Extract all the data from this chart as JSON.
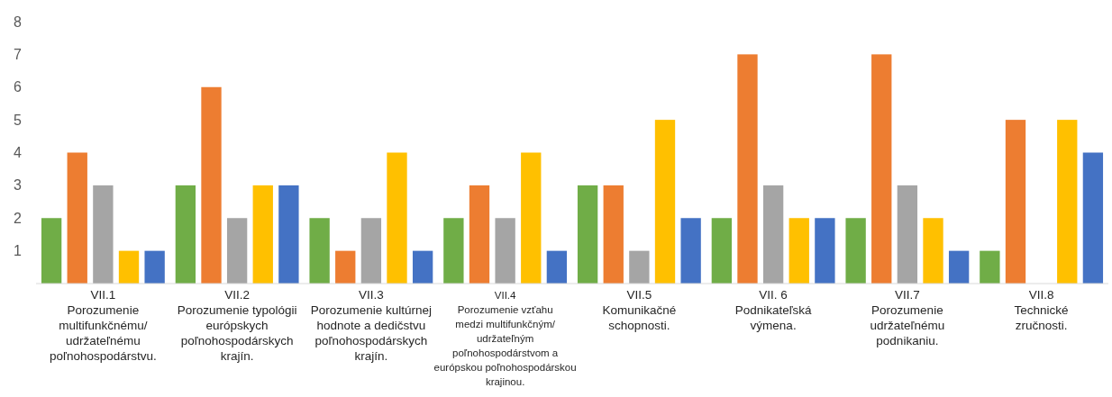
{
  "chart_data": {
    "type": "bar",
    "categories": [
      "VII.1\nPorozumenie\nmultifunkčnému/\nudržateľnému\npoľnohospodárstvu.",
      "VII.2\nPorozumenie typológii\neurópskych\npoľnohospodárskych\nkrajín.",
      "VII.3\nPorozumenie kultúrnej\nhodnote a dedičstvu\npoľnohospodárskych\nkrajín.",
      "VII.4\nPorozumenie vzťahu\nmedzi multifunkčným/\nudržateľným\npoľnohospodárstvom a\neurópskou poľnohospodárskou\nkrajinou.",
      "VII.5\nKomunikačné\nschopnosti.",
      "VII. 6\nPodnikateľská\nvýmena.",
      "VII.7\nPorozumenie\nudržateľnému\npodnikaniu.",
      "VII.8\nTechnické\nzručnosti."
    ],
    "series": [
      {
        "color": "#70ad47",
        "values": [
          2,
          3,
          2,
          2,
          3,
          2,
          2,
          1
        ]
      },
      {
        "color": "#ed7d31",
        "values": [
          4,
          6,
          1,
          3,
          3,
          7,
          7,
          5
        ]
      },
      {
        "color": "#a5a5a5",
        "values": [
          3,
          2,
          2,
          2,
          1,
          3,
          3,
          0
        ]
      },
      {
        "color": "#ffc000",
        "values": [
          1,
          3,
          4,
          4,
          5,
          2,
          2,
          5
        ]
      },
      {
        "color": "#4472c4",
        "values": [
          1,
          3,
          1,
          1,
          2,
          2,
          1,
          4
        ]
      }
    ],
    "ylim": [
      0,
      8
    ],
    "yticks": [
      1,
      2,
      3,
      4,
      5,
      6,
      7,
      8
    ]
  }
}
